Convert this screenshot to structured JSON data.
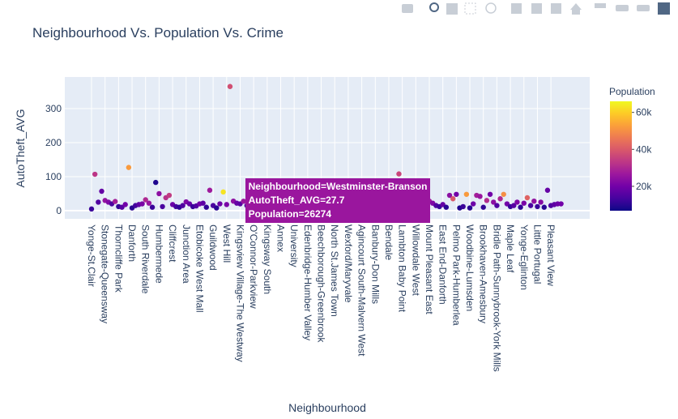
{
  "chart_data": {
    "type": "scatter",
    "title": "Neighbourhood Vs. Population Vs. Crime",
    "x_label": "Neighbourhood",
    "y_label": "AutoTheft_AVG",
    "colorbar_title": "Population",
    "categories": [
      "Yonge-St.Clair",
      null,
      null,
      null,
      "Stonegate-Queensway",
      null,
      null,
      null,
      "Thorncliffe Park",
      null,
      null,
      null,
      "Danforth",
      null,
      null,
      null,
      "South Riverdale",
      null,
      null,
      null,
      "Humbermede",
      null,
      null,
      null,
      "Cliffcrest",
      null,
      null,
      null,
      "Junction Area",
      null,
      null,
      null,
      "Etobicoke West Mall",
      null,
      null,
      null,
      "Guildwood",
      null,
      null,
      null,
      "West Hill",
      null,
      null,
      null,
      "Kingsview Village-The Westway",
      null,
      null,
      null,
      "O'Connor-Parkview",
      null,
      null,
      null,
      "Kingsway South",
      null,
      null,
      null,
      "Annex",
      null,
      null,
      null,
      "University",
      null,
      null,
      null,
      "Edenbridge-Humber Valley",
      null,
      null,
      null,
      "Beechborough-Greenbrook",
      null,
      null,
      null,
      "North St.James Town",
      null,
      null,
      null,
      "Wexford/Maryvale",
      null,
      null,
      null,
      "Agincourt South-Malvern West",
      null,
      null,
      null,
      "Banbury-Don Mills",
      null,
      null,
      null,
      "Bendale",
      null,
      null,
      null,
      "Lambton Baby Point",
      null,
      null,
      null,
      "Willowdale West",
      null,
      null,
      null,
      "Mount Pleasant East",
      null,
      null,
      null,
      "East End-Danforth",
      null,
      null,
      null,
      "Pelmo Park-Humberlea",
      null,
      null,
      null,
      "Woodbine-Lumsden",
      null,
      null,
      null,
      "Brookhaven-Amesbury",
      null,
      null,
      null,
      "Bridle Path-Sunnybrook-York Mills",
      null,
      null,
      null,
      "Maple Leaf",
      null,
      null,
      null,
      "Yonge-Eglinton",
      null,
      null,
      null,
      "Little Portugal",
      null,
      null,
      null,
      "Pleasant View",
      null,
      null,
      null
    ],
    "values": [
      5,
      107,
      25,
      57,
      30,
      25,
      20,
      27,
      12,
      10,
      18,
      127,
      8,
      15,
      18,
      20,
      32,
      22,
      10,
      83,
      50,
      12,
      38,
      45,
      18,
      12,
      10,
      15,
      26,
      20,
      12,
      14,
      20,
      22,
      10,
      60,
      15,
      8,
      20,
      55,
      18,
      365,
      28,
      22,
      20,
      27.7,
      15,
      12,
      25,
      18,
      10,
      20,
      15,
      22,
      8,
      12,
      18,
      25,
      14,
      10,
      20,
      16,
      12,
      10,
      22,
      18,
      15,
      25,
      12,
      20,
      14,
      10,
      18,
      22,
      12,
      16,
      20,
      10,
      15,
      12,
      18,
      22,
      10,
      14,
      20,
      15,
      12,
      25,
      18,
      16,
      12,
      108,
      20,
      15,
      10,
      18,
      25,
      12,
      14,
      10,
      28,
      22,
      15,
      12,
      18,
      10,
      45,
      35,
      48,
      8,
      12,
      48,
      8,
      20,
      45,
      42,
      10,
      30,
      48,
      25,
      15,
      35,
      48,
      20,
      12,
      15,
      25,
      10,
      22,
      38,
      15,
      28,
      12,
      25,
      10,
      60,
      15,
      18,
      20,
      20
    ],
    "population": [
      12000,
      33000,
      15000,
      18000,
      25000,
      22000,
      14000,
      28000,
      11000,
      16000,
      20000,
      52000,
      10000,
      13000,
      17000,
      21000,
      30000,
      26000,
      12000,
      9000,
      24000,
      14000,
      32000,
      34000,
      19000,
      13000,
      11000,
      15000,
      22000,
      18000,
      12000,
      15000,
      20000,
      17000,
      11000,
      27000,
      14000,
      10000,
      19000,
      63000,
      21000,
      38000,
      24000,
      18000,
      16000,
      26274,
      13000,
      12000,
      22000,
      17000,
      11000,
      19000,
      14000,
      21000,
      10000,
      12000,
      18000,
      23000,
      15000,
      11000,
      20000,
      16000,
      13000,
      10000,
      22000,
      17000,
      14000,
      24000,
      12000,
      19000,
      15000,
      11000,
      18000,
      21000,
      12000,
      16000,
      20000,
      10000,
      15000,
      13000,
      18000,
      22000,
      11000,
      14000,
      20000,
      16000,
      12000,
      25000,
      19000,
      17000,
      13000,
      36000,
      21000,
      15000,
      11000,
      18000,
      26000,
      12000,
      14000,
      10000,
      27000,
      22000,
      15000,
      12000,
      18000,
      10000,
      24000,
      40000,
      20000,
      9000,
      12000,
      52000,
      10000,
      19000,
      28000,
      26000,
      11000,
      31000,
      20000,
      24000,
      15000,
      30000,
      50000,
      20000,
      12000,
      16000,
      22000,
      11000,
      21000,
      42000,
      14000,
      25000,
      12000,
      23000,
      10000,
      18000,
      15000,
      17000,
      19000,
      20000
    ],
    "colorscale": [
      "#0d0887",
      "#46039f",
      "#7201a8",
      "#9c179e",
      "#bd3786",
      "#d8576b",
      "#ed7953",
      "#fb9f3a",
      "#fdca26",
      "#f0f921"
    ],
    "clim": [
      6800,
      66000
    ],
    "cticks": [
      {
        "value": 20000,
        "label": "20k"
      },
      {
        "value": 40000,
        "label": "40k"
      },
      {
        "value": 60000,
        "label": "60k"
      }
    ],
    "ylim": [
      -24,
      393
    ],
    "yticks": [
      0,
      100,
      200,
      300
    ],
    "grid": true,
    "hover": [
      "Neighbourhood=Westminster-Branson",
      "AutoTheft_AVG=27.7",
      "Population=26274"
    ]
  }
}
